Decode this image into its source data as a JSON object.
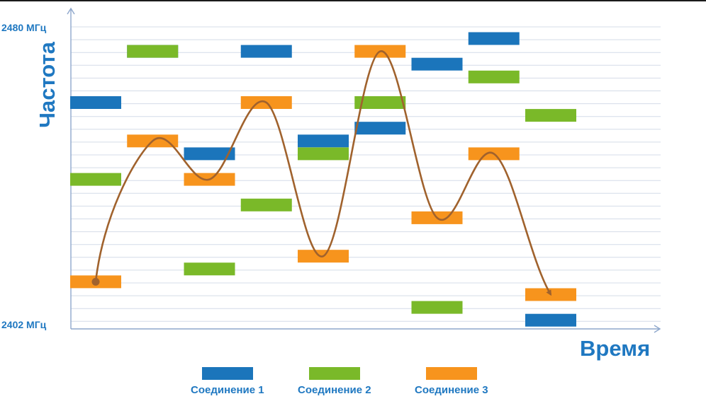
{
  "axes": {
    "y_title": "Частота",
    "x_title": "Время",
    "y_max_label": "2480 МГц",
    "y_min_label": "2402 МГц"
  },
  "colors": {
    "connection_1": "#1b75bb",
    "connection_2": "#7ab929",
    "connection_3": "#f7941d",
    "path": "#a0622d",
    "grid": "#d4dce8",
    "axis": "#8ea7cc",
    "text": "#1f78c1"
  },
  "legend": [
    {
      "label": "Соединение 1",
      "color_key": "connection_1"
    },
    {
      "label": "Соединение 2",
      "color_key": "connection_2"
    },
    {
      "label": "Соединение 3",
      "color_key": "connection_3"
    }
  ],
  "hop_channels": {
    "columns": 9,
    "rows": 23,
    "connection_1": [
      6,
      2,
      10,
      2,
      9,
      8,
      3,
      1,
      23
    ],
    "connection_2": [
      12,
      2,
      19,
      14,
      10,
      6,
      22,
      4,
      7
    ],
    "connection_3": [
      20,
      9,
      12,
      6,
      18,
      2,
      15,
      10,
      21
    ]
  }
}
